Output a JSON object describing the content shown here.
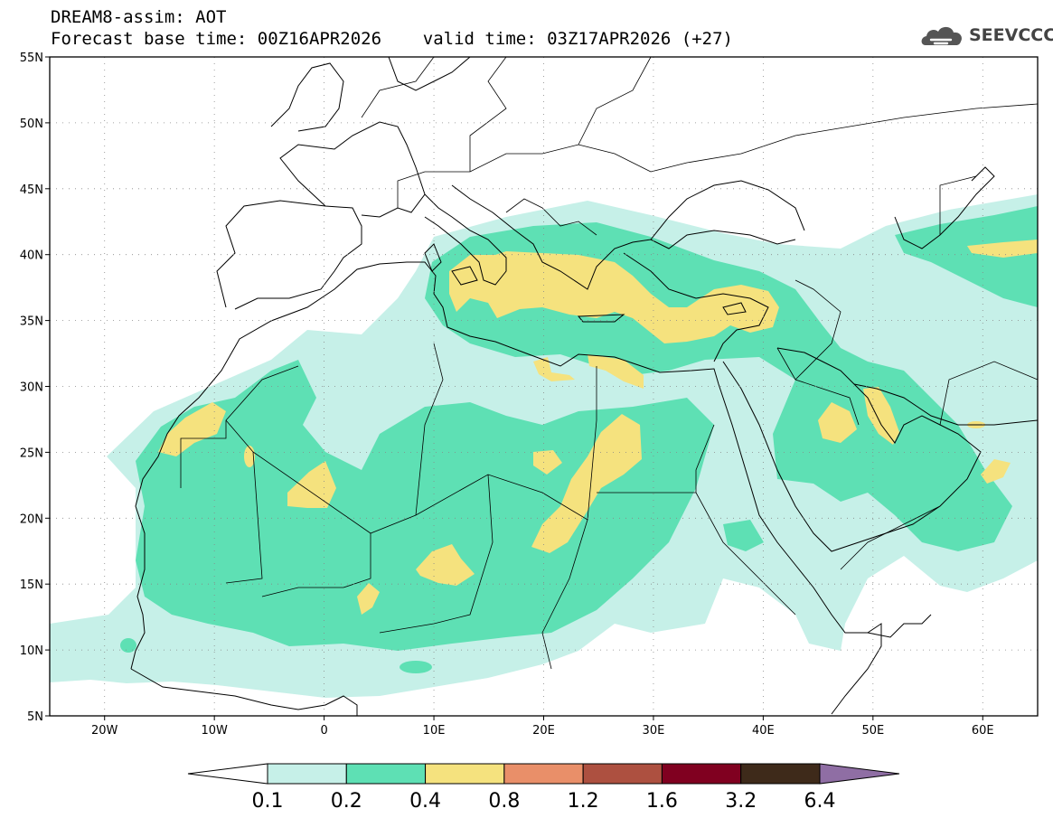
{
  "header": {
    "model_line": "DREAM8-assim: AOT",
    "forecast_line": "Forecast base time: 00Z16APR2026    valid time: 03Z17APR2026 (+27)",
    "logo_text": "SEEVCCC"
  },
  "map": {
    "lat_range": [
      5,
      55
    ],
    "lon_range": [
      -25,
      65
    ],
    "lat_labels": [
      "5N",
      "10N",
      "15N",
      "20N",
      "25N",
      "30N",
      "35N",
      "40N",
      "45N",
      "50N",
      "55N"
    ],
    "lon_labels": [
      "20W",
      "10W",
      "0",
      "10E",
      "20E",
      "30E",
      "40E",
      "50E",
      "60E"
    ]
  },
  "legend": {
    "thresholds": [
      "0.1",
      "0.2",
      "0.4",
      "0.8",
      "1.2",
      "1.6",
      "3.2",
      "6.4"
    ],
    "colors": [
      "#ffffff",
      "#c6f0e8",
      "#5ee0b4",
      "#f5e27e",
      "#e98f69",
      "#ad5040",
      "#800020",
      "#3e2a1a",
      "#8f6ea4"
    ]
  }
}
